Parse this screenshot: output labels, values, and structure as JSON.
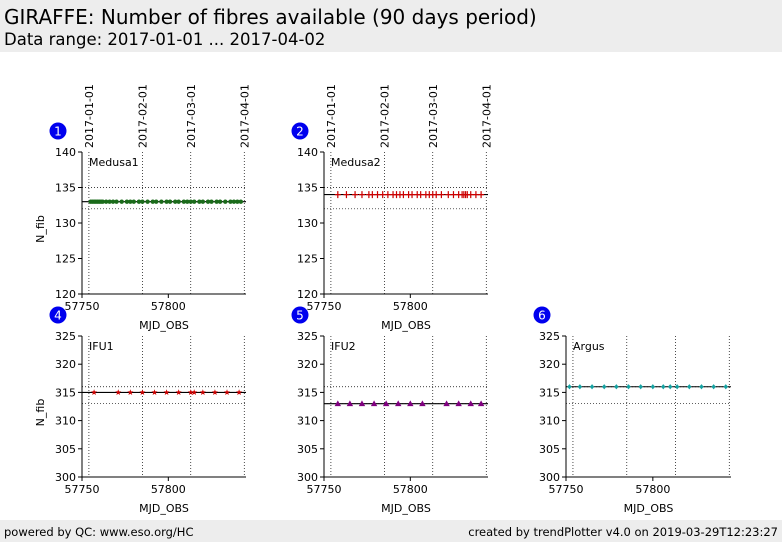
{
  "header": {
    "title": "GIRAFFE: Number of fibres available (90 days period)",
    "subtitle": "Data range: 2017-01-01 ... 2017-04-02"
  },
  "footer": {
    "left": "powered by QC: www.eso.org/HC",
    "right": "created by trendPlotter v4.0 on 2019-03-29T12:23:27"
  },
  "colors": {
    "header_bg": "#ededed",
    "badge": "#0000ee",
    "medusa1_marker": "#1b6b1b",
    "medusa2_marker": "#cc0000",
    "ifu1_marker": "#cc0000",
    "ifu2_marker": "#800080",
    "argus_marker": "#16a3a3"
  },
  "chart_data": [
    {
      "type": "scatter",
      "panel": "1",
      "label": "Medusa1",
      "xlabel": "MJD_OBS",
      "ylabel": "N_fib",
      "xlim": [
        57750,
        57845
      ],
      "ylim": [
        120,
        140
      ],
      "yticks": [
        120,
        125,
        130,
        135,
        140
      ],
      "xticks": [
        57750,
        57800
      ],
      "date_ticks": [
        {
          "mjd": 57754,
          "label": "2017-01-01"
        },
        {
          "mjd": 57785,
          "label": "2017-02-01"
        },
        {
          "mjd": 57813,
          "label": "2017-03-01"
        },
        {
          "mjd": 57844,
          "label": "2017-04-01"
        }
      ],
      "reference_lines": {
        "solid": [
          133
        ],
        "dotted": [
          132,
          135
        ]
      },
      "marker": "circle",
      "color": "#1b6b1b",
      "x": [
        57755,
        57756,
        57757,
        57758,
        57759,
        57760,
        57761,
        57762,
        57764,
        57766,
        57768,
        57770,
        57773,
        57776,
        57778,
        57780,
        57783,
        57785,
        57788,
        57791,
        57793,
        57796,
        57799,
        57801,
        57804,
        57806,
        57809,
        57811,
        57813,
        57815,
        57818,
        57820,
        57823,
        57825,
        57828,
        57830,
        57833,
        57836,
        57838,
        57840,
        57842
      ],
      "y": [
        133,
        133,
        133,
        133,
        133,
        133,
        133,
        133,
        133,
        133,
        133,
        133,
        133,
        133,
        133,
        133,
        133,
        133,
        133,
        133,
        133,
        133,
        133,
        133,
        133,
        133,
        133,
        133,
        133,
        133,
        133,
        133,
        133,
        133,
        133,
        133,
        133,
        133,
        133,
        133,
        133
      ]
    },
    {
      "type": "scatter",
      "panel": "2",
      "label": "Medusa2",
      "xlabel": "MJD_OBS",
      "ylabel": "",
      "xlim": [
        57750,
        57845
      ],
      "ylim": [
        120,
        140
      ],
      "yticks": [
        120,
        125,
        130,
        135,
        140
      ],
      "xticks": [
        57750,
        57800
      ],
      "date_ticks": [
        {
          "mjd": 57754,
          "label": "2017-01-01"
        },
        {
          "mjd": 57785,
          "label": "2017-02-01"
        },
        {
          "mjd": 57813,
          "label": "2017-03-01"
        },
        {
          "mjd": 57844,
          "label": "2017-04-01"
        }
      ],
      "reference_lines": {
        "solid": [
          134
        ],
        "dotted": [
          132,
          135
        ]
      },
      "marker": "plus",
      "color": "#cc0000",
      "x": [
        57758,
        57763,
        57768,
        57772,
        57776,
        57778,
        57781,
        57784,
        57787,
        57790,
        57792,
        57794,
        57796,
        57799,
        57801,
        57804,
        57806,
        57809,
        57811,
        57813,
        57815,
        57818,
        57822,
        57825,
        57828,
        57830,
        57831,
        57832,
        57833,
        57835,
        57838,
        57841
      ],
      "y": [
        134,
        134,
        134,
        134,
        134,
        134,
        134,
        134,
        134,
        134,
        134,
        134,
        134,
        134,
        134,
        134,
        134,
        134,
        134,
        134,
        134,
        134,
        134,
        134,
        134,
        134,
        134,
        134,
        134,
        134,
        134,
        134
      ]
    },
    {
      "type": "scatter",
      "panel": "4",
      "label": "IFU1",
      "xlabel": "MJD_OBS",
      "ylabel": "N_fib",
      "xlim": [
        57750,
        57845
      ],
      "ylim": [
        300,
        325
      ],
      "yticks": [
        300,
        305,
        310,
        315,
        320,
        325
      ],
      "xticks": [
        57750,
        57800
      ],
      "date_ticks": [],
      "reference_lines": {
        "solid": [
          315
        ],
        "dotted": [
          313,
          316
        ]
      },
      "marker": "star",
      "color": "#cc0000",
      "x": [
        57757,
        57771,
        57778,
        57785,
        57792,
        57799,
        57806,
        57813,
        57815,
        57820,
        57827,
        57834,
        57841
      ],
      "y": [
        315,
        315,
        315,
        315,
        315,
        315,
        315,
        315,
        315,
        315,
        315,
        315,
        315
      ]
    },
    {
      "type": "scatter",
      "panel": "5",
      "label": "IFU2",
      "xlabel": "MJD_OBS",
      "ylabel": "",
      "xlim": [
        57750,
        57845
      ],
      "ylim": [
        300,
        325
      ],
      "yticks": [
        300,
        305,
        310,
        315,
        320,
        325
      ],
      "xticks": [
        57750,
        57800
      ],
      "date_ticks": [],
      "reference_lines": {
        "solid": [
          313
        ],
        "dotted": [
          313,
          316
        ]
      },
      "marker": "triangle",
      "color": "#800080",
      "x": [
        57758,
        57765,
        57772,
        57779,
        57786,
        57793,
        57800,
        57807,
        57821,
        57828,
        57835,
        57841
      ],
      "y": [
        313,
        313,
        313,
        313,
        313,
        313,
        313,
        313,
        313,
        313,
        313,
        313
      ]
    },
    {
      "type": "scatter",
      "panel": "6",
      "label": "Argus",
      "xlabel": "MJD_OBS",
      "ylabel": "",
      "xlim": [
        57750,
        57845
      ],
      "ylim": [
        300,
        325
      ],
      "yticks": [
        300,
        305,
        310,
        315,
        320,
        325
      ],
      "xticks": [
        57750,
        57800
      ],
      "date_ticks": [],
      "reference_lines": {
        "solid": [
          316
        ],
        "dotted": [
          313,
          316
        ]
      },
      "marker": "diamond",
      "color": "#16a3a3",
      "x": [
        57752,
        57758,
        57765,
        57772,
        57779,
        57786,
        57793,
        57800,
        57806,
        57810,
        57814,
        57821,
        57828,
        57835,
        57842
      ],
      "y": [
        316,
        316,
        316,
        316,
        316,
        316,
        316,
        316,
        316,
        316,
        316,
        316,
        316,
        316,
        316
      ]
    }
  ]
}
